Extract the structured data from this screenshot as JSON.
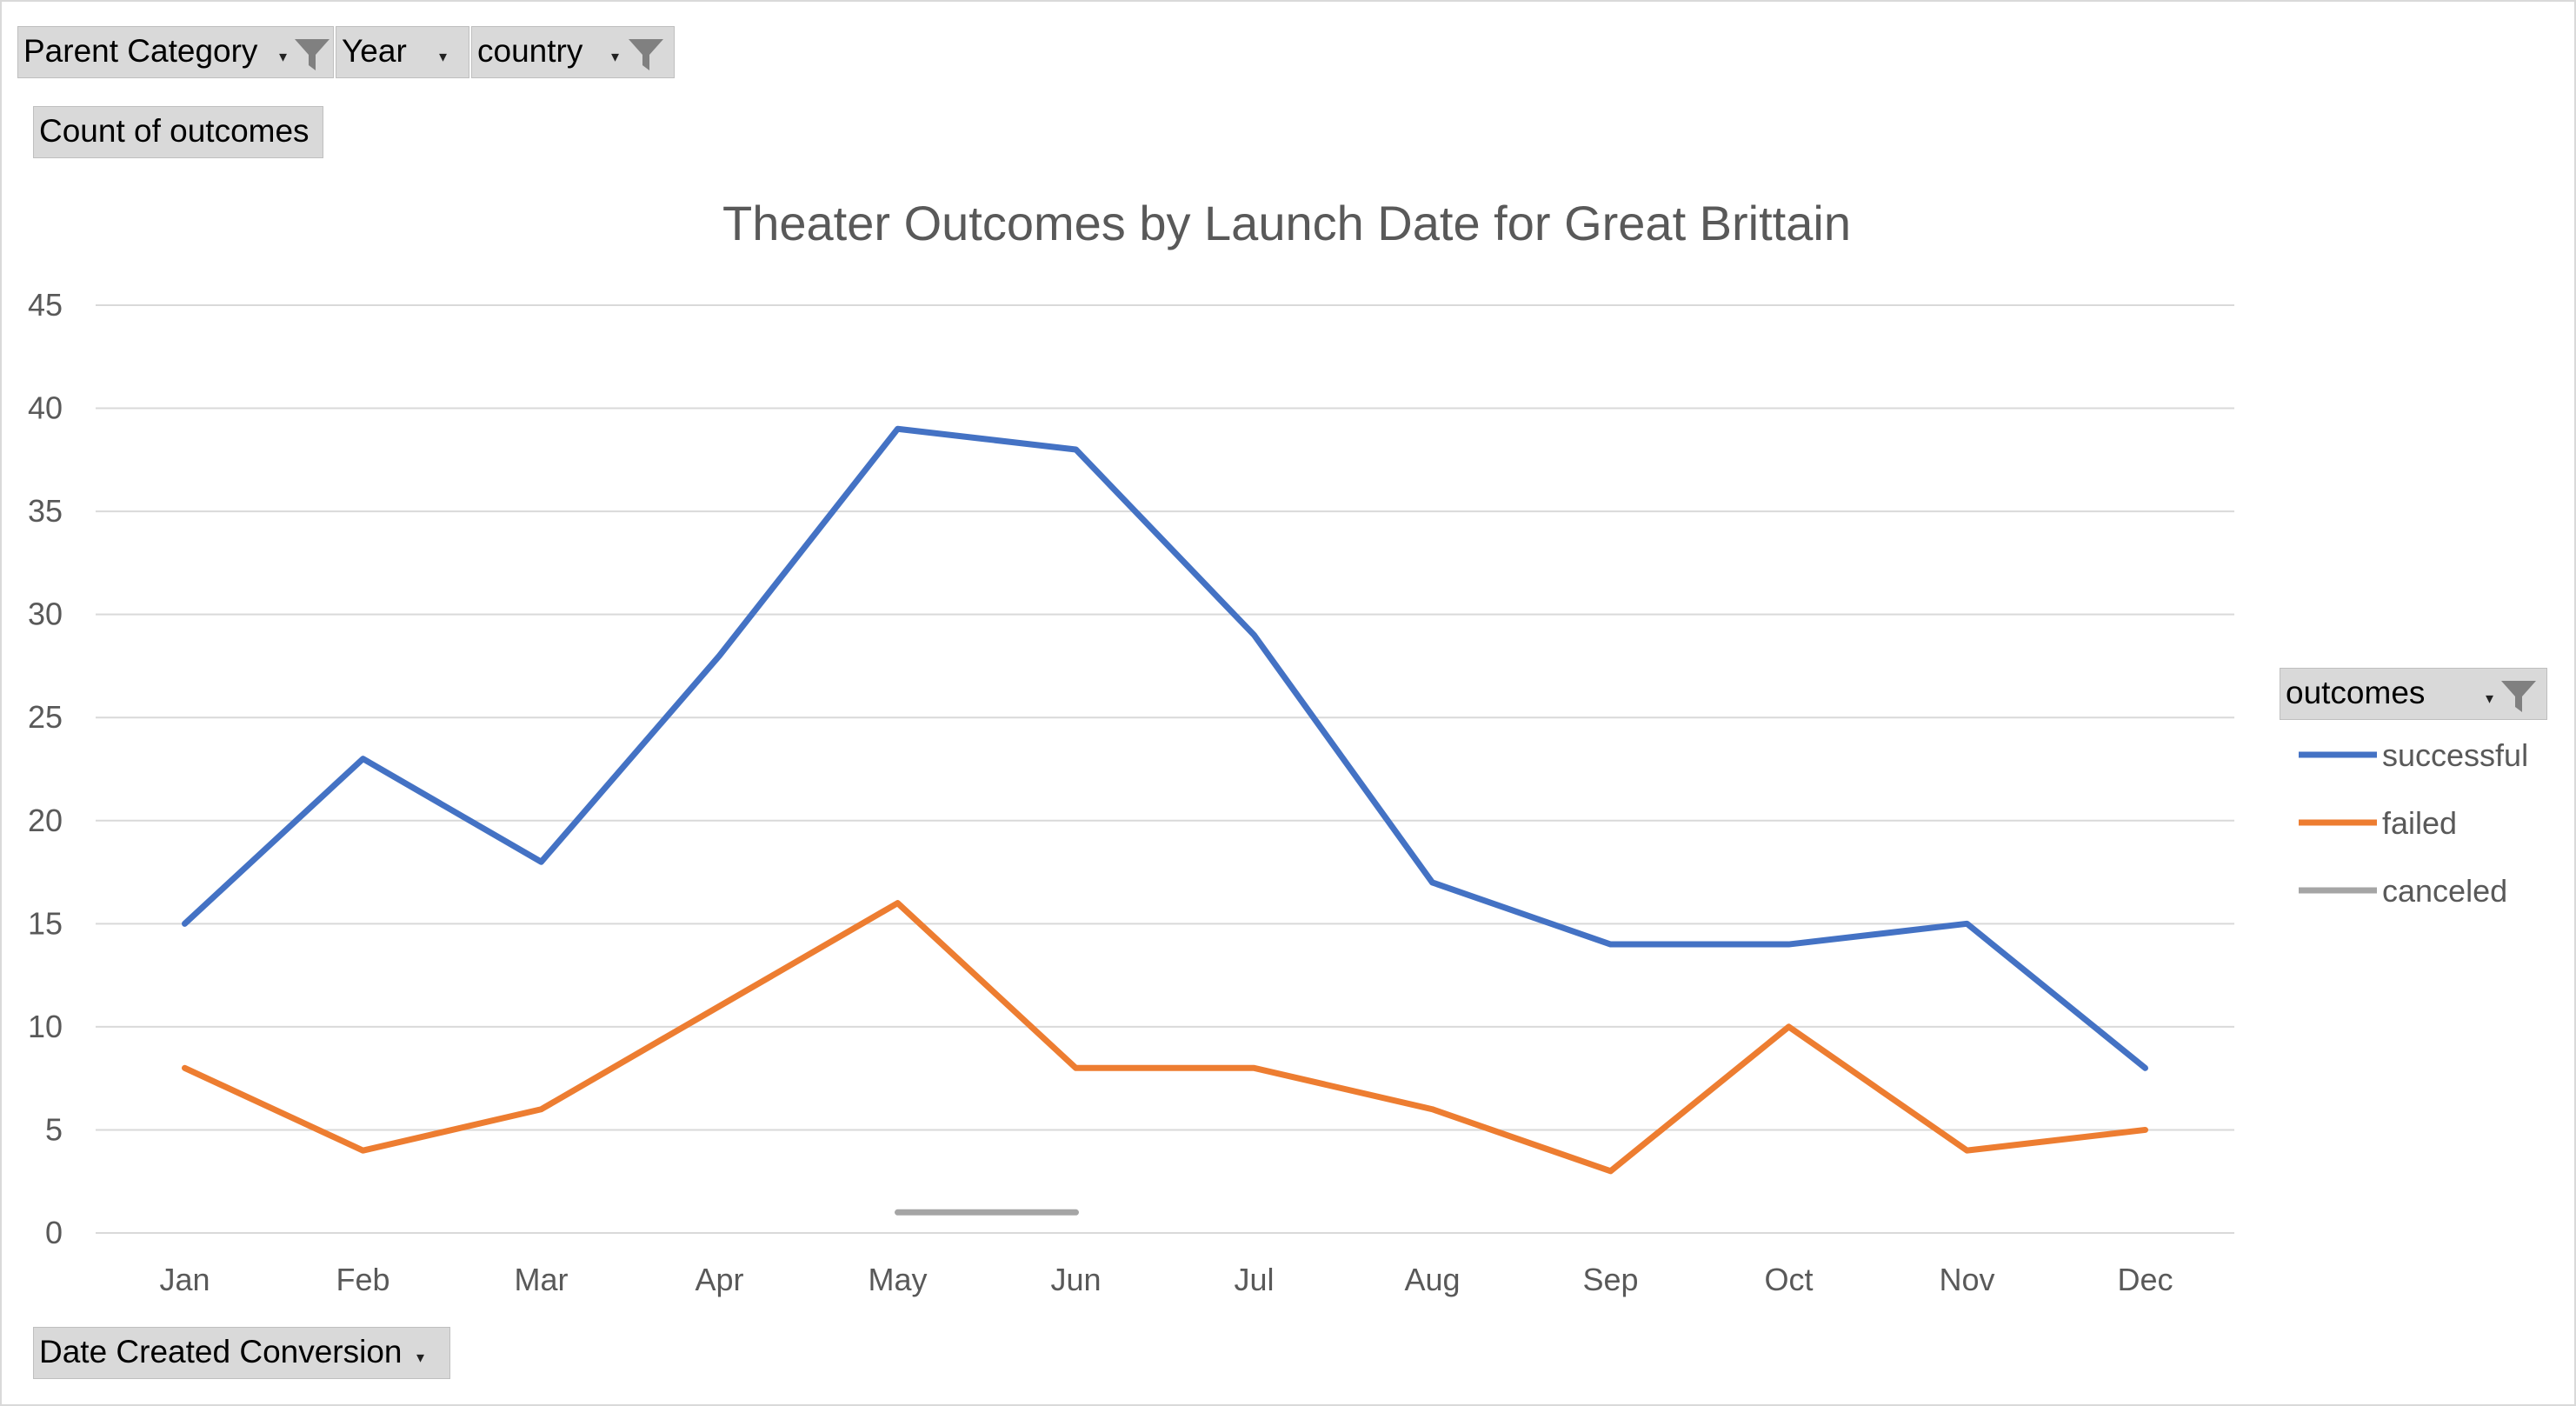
{
  "pivot": {
    "filters": [
      {
        "label": "Parent Category",
        "has_filter_icon": true
      },
      {
        "label": "Year",
        "has_filter_icon": false
      },
      {
        "label": "country",
        "has_filter_icon": true
      }
    ],
    "values_field": "Count of outcomes",
    "axis_field": "Date Created Conversion",
    "legend_field": "outcomes"
  },
  "icons": {
    "filter": "funnel-filter-icon",
    "dropdown": "dropdown-arrow-icon"
  },
  "chart_data": {
    "type": "line",
    "title": "Theater Outcomes by Launch Date for Great Brittain",
    "xlabel": "",
    "ylabel": "",
    "categories": [
      "Jan",
      "Feb",
      "Mar",
      "Apr",
      "May",
      "Jun",
      "Jul",
      "Aug",
      "Sep",
      "Oct",
      "Nov",
      "Dec"
    ],
    "ylim": [
      0,
      45
    ],
    "yticks": [
      0,
      5,
      10,
      15,
      20,
      25,
      30,
      35,
      40,
      45
    ],
    "grid": true,
    "legend_position": "right",
    "series": [
      {
        "name": "successful",
        "color": "#4472c4",
        "values": [
          15,
          23,
          18,
          28,
          39,
          38,
          29,
          17,
          14,
          14,
          15,
          8
        ]
      },
      {
        "name": "failed",
        "color": "#ed7d31",
        "values": [
          8,
          4,
          6,
          11,
          16,
          8,
          8,
          6,
          3,
          10,
          4,
          5
        ]
      },
      {
        "name": "canceled",
        "color": "#a5a5a5",
        "values": [
          null,
          null,
          null,
          null,
          1,
          1,
          null,
          null,
          null,
          null,
          null,
          null
        ]
      }
    ]
  }
}
